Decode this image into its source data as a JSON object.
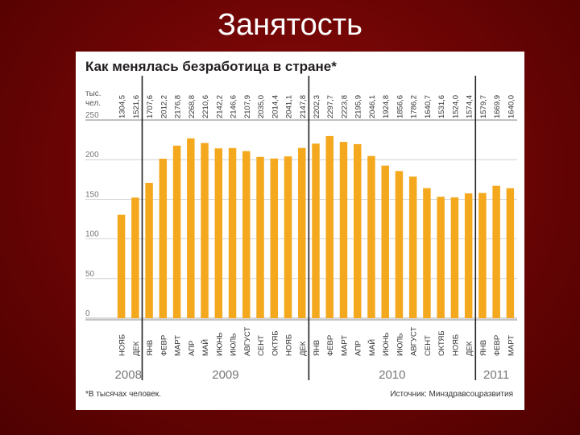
{
  "slide": {
    "title": "Занятость"
  },
  "chart_data": {
    "type": "bar",
    "title": "Как менялась безработица в стране*",
    "unit_label_line1": "тыс.",
    "unit_label_line2": "чел.",
    "footnote": "*В тысячах человек.",
    "source": "Источник: Минздравсоцразвития",
    "yticks": [
      "250",
      "200",
      "150",
      "100",
      "50",
      "0"
    ],
    "ylim": [
      0,
      250
    ],
    "bar_color": "#f4a81d",
    "categories": [
      "НОЯБ",
      "ДЕК",
      "ЯНВ",
      "ФЕВР",
      "МАРТ",
      "АПР",
      "МАЙ",
      "ИЮНЬ",
      "ИЮЛЬ",
      "АВГУСТ",
      "СЕНТ",
      "ОКТЯБ",
      "НОЯБ",
      "ДЕК",
      "ЯНВ",
      "ФЕВР",
      "МАРТ",
      "АПР",
      "МАЙ",
      "ИЮНЬ",
      "ИЮЛЬ",
      "АВГУСТ",
      "СЕНТ",
      "ОКТЯБ",
      "НОЯБ",
      "ДЕК",
      "ЯНВ",
      "ФЕВР",
      "МАРТ"
    ],
    "value_labels": [
      "1304,5",
      "1521,6",
      "1707,6",
      "2012,2",
      "2176,8",
      "2268,8",
      "2210,6",
      "2142,2",
      "2146,6",
      "2107,9",
      "2035,0",
      "2014,4",
      "2041,1",
      "2147,8",
      "2202,3",
      "2297,7",
      "2223,8",
      "2195,9",
      "2046,1",
      "1924,8",
      "1856,6",
      "1786,2",
      "1640,7",
      "1531,6",
      "1524,0",
      "1574,4",
      "1579,7",
      "1669,9",
      "1640,0"
    ],
    "values": [
      1304.5,
      1521.6,
      1707.6,
      2012.2,
      2176.8,
      2268.8,
      2210.6,
      2142.2,
      2146.6,
      2107.9,
      2035.0,
      2014.4,
      2041.1,
      2147.8,
      2202.3,
      2297.7,
      2223.8,
      2195.9,
      2046.1,
      1924.8,
      1856.6,
      1786.2,
      1640.7,
      1531.6,
      1524.0,
      1574.4,
      1579.7,
      1669.9,
      1640.0
    ],
    "years": [
      {
        "label": "2008",
        "start": 0,
        "end": 1
      },
      {
        "label": "2009",
        "start": 2,
        "end": 13
      },
      {
        "label": "2010",
        "start": 14,
        "end": 25
      },
      {
        "label": "2011",
        "start": 26,
        "end": 28
      }
    ]
  }
}
